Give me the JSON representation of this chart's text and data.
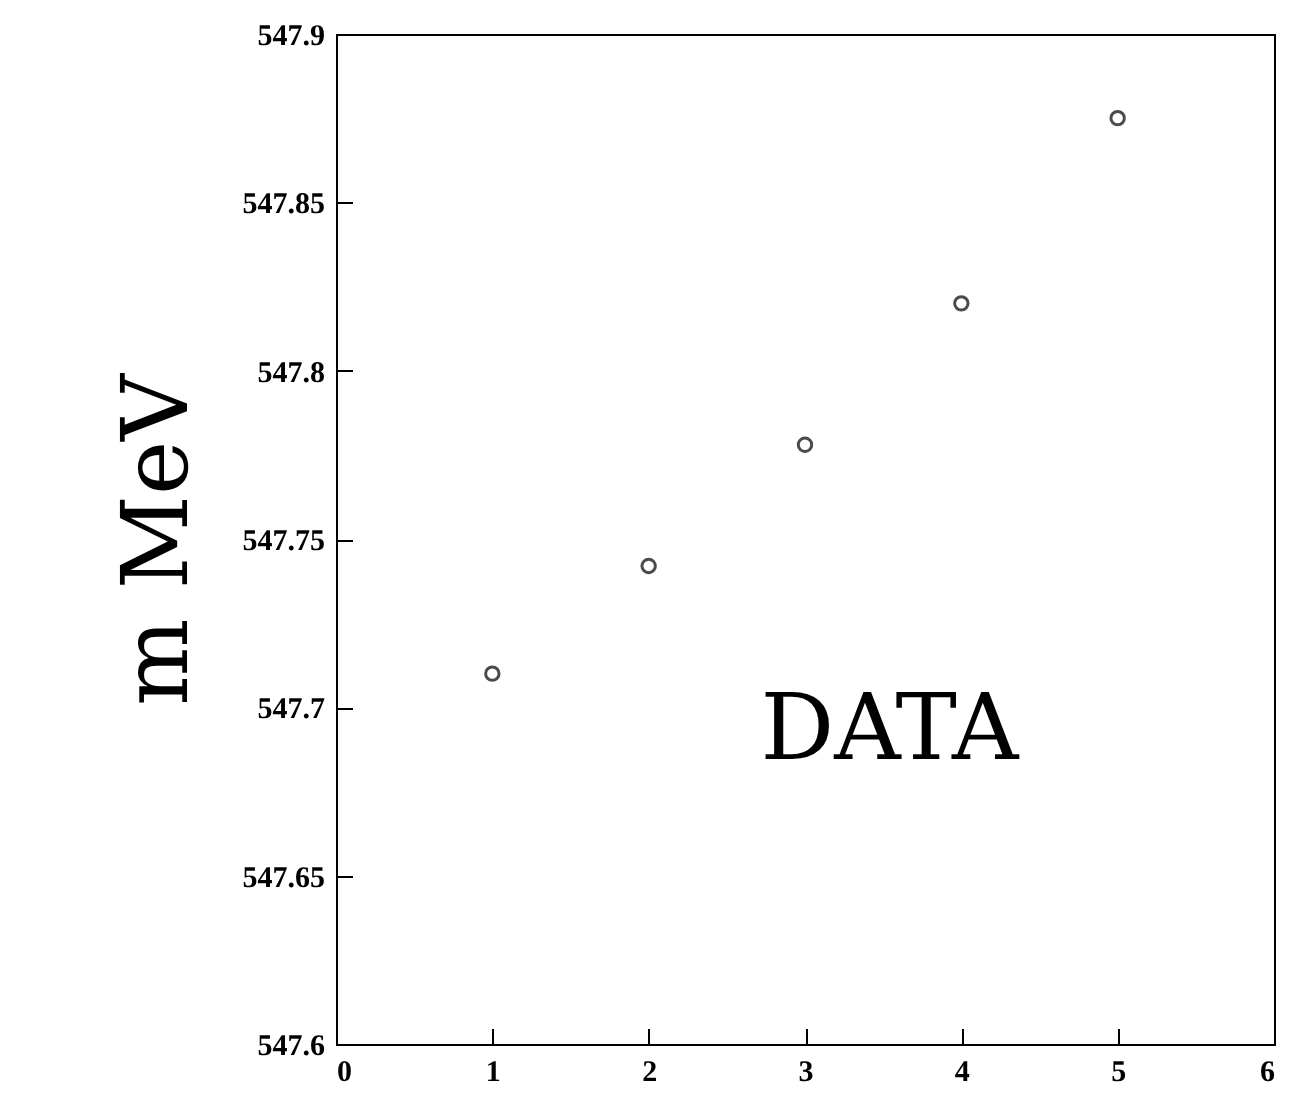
{
  "chart_data": {
    "type": "scatter",
    "ylabel": "m MeV",
    "x": [
      1,
      2,
      3,
      4,
      5
    ],
    "values": [
      547.71,
      547.742,
      547.778,
      547.82,
      547.875
    ],
    "xlim": [
      0,
      6
    ],
    "xticks": [
      0,
      1,
      2,
      3,
      4,
      5,
      6
    ],
    "ylim": [
      547.6,
      547.9
    ],
    "yticks": [
      547.6,
      547.65,
      547.7,
      547.75,
      547.8,
      547.85,
      547.9
    ],
    "marker": "circle",
    "grid": false,
    "color": "#000000",
    "annotations": [
      "DATA"
    ]
  }
}
